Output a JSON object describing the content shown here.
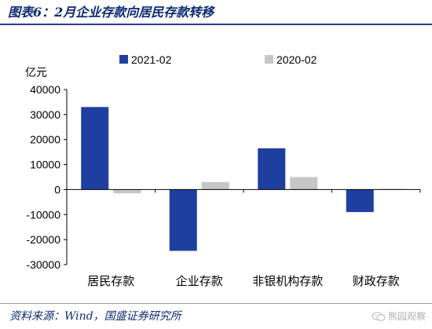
{
  "header": {
    "figure_title": "图表6：2月企业存款向居民存款转移"
  },
  "footer": {
    "source": "资料来源：Wind，国盛证券研究所"
  },
  "chart_data": {
    "type": "bar",
    "unit_label": "亿元",
    "categories": [
      "居民存款",
      "企业存款",
      "非银机构存款",
      "财政存款"
    ],
    "series": [
      {
        "name": "2021-02",
        "values": [
          33000,
          -24500,
          16500,
          -9000
        ],
        "color": "#1f3fa0"
      },
      {
        "name": "2020-02",
        "values": [
          -1500,
          3000,
          5000,
          300
        ],
        "color": "#c6c6c6"
      }
    ],
    "ylim": [
      -30000,
      40000
    ],
    "yticks": [
      -30000,
      -20000,
      -10000,
      0,
      10000,
      20000,
      30000,
      40000
    ],
    "ytick_labels": [
      "-30000",
      "-20000",
      "-10000",
      "0",
      "10000",
      "20000",
      "30000",
      "40000"
    ],
    "legend_position": "top",
    "grid": false
  },
  "watermark_text": "熊园观察"
}
